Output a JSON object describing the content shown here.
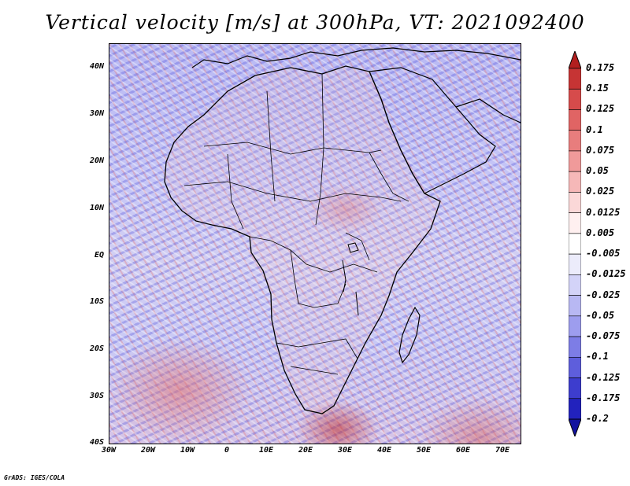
{
  "title": "Vertical velocity [m/s] at 300hPa, VT: 2021092400",
  "footer": "GrADS: IGES/COLA",
  "lat_labels": [
    "40N",
    "30N",
    "20N",
    "10N",
    "EQ",
    "10S",
    "20S",
    "30S",
    "40S"
  ],
  "lon_labels": [
    "30W",
    "20W",
    "10W",
    "0",
    "10E",
    "20E",
    "30E",
    "40E",
    "50E",
    "60E",
    "70E"
  ],
  "colorbar": {
    "labels": [
      "0.175",
      "0.15",
      "0.125",
      "0.1",
      "0.075",
      "0.05",
      "0.025",
      "0.0125",
      "0.005",
      "-0.005",
      "-0.0125",
      "-0.025",
      "-0.05",
      "-0.075",
      "-0.1",
      "-0.125",
      "-0.175",
      "-0.2"
    ],
    "colors": [
      "#b21f1f",
      "#c63434",
      "#d64b4b",
      "#e06464",
      "#e87d7d",
      "#f09a9a",
      "#f6b8b8",
      "#fbd8d8",
      "#fff0f0",
      "#ffffff",
      "#ececfb",
      "#d3d3f8",
      "#b8b8f3",
      "#9d9dee",
      "#7d7de6",
      "#5e5edc",
      "#3d3dce",
      "#2222bd",
      "#12129f"
    ]
  }
}
